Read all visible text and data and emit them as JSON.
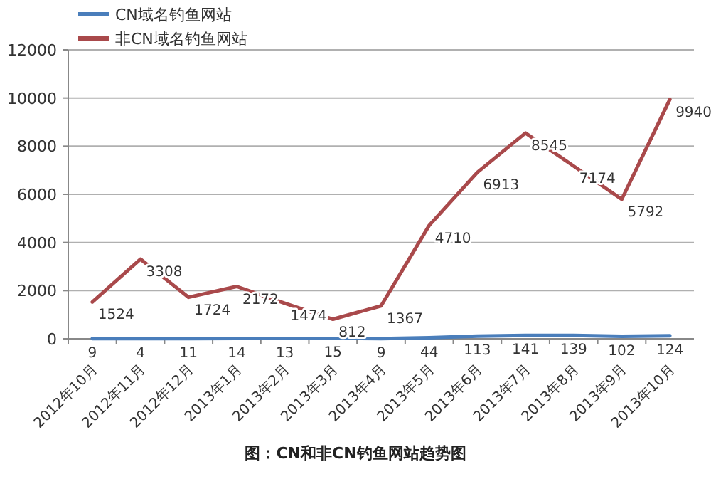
{
  "chart_data": {
    "type": "line",
    "categories": [
      "2012年10月",
      "2012年11月",
      "2012年12月",
      "2013年1月",
      "2013年2月",
      "2013年3月",
      "2013年4月",
      "2013年5月",
      "2013年6月",
      "2013年7月",
      "2013年8月",
      "2013年9月",
      "2013年10月"
    ],
    "series": [
      {
        "name": "CN域名钓鱼网站",
        "color": "#4a7ebb",
        "values": [
          9,
          4,
          11,
          14,
          13,
          15,
          9,
          44,
          113,
          141,
          139,
          102,
          124
        ]
      },
      {
        "name": "非CN域名钓鱼网站",
        "color": "#a9494b",
        "values": [
          1524,
          3308,
          1724,
          2172,
          1474,
          812,
          1367,
          4710,
          6913,
          8545,
          7174,
          5792,
          9940
        ]
      }
    ],
    "ylim": [
      0,
      12000
    ],
    "yticks": [
      0,
      2000,
      4000,
      6000,
      8000,
      10000,
      12000
    ],
    "grid": "y",
    "legend": "top left",
    "data_labels": true,
    "marker": "none",
    "annotations": [
      "图：CN和非CN钓鱼网站趋势图"
    ]
  }
}
